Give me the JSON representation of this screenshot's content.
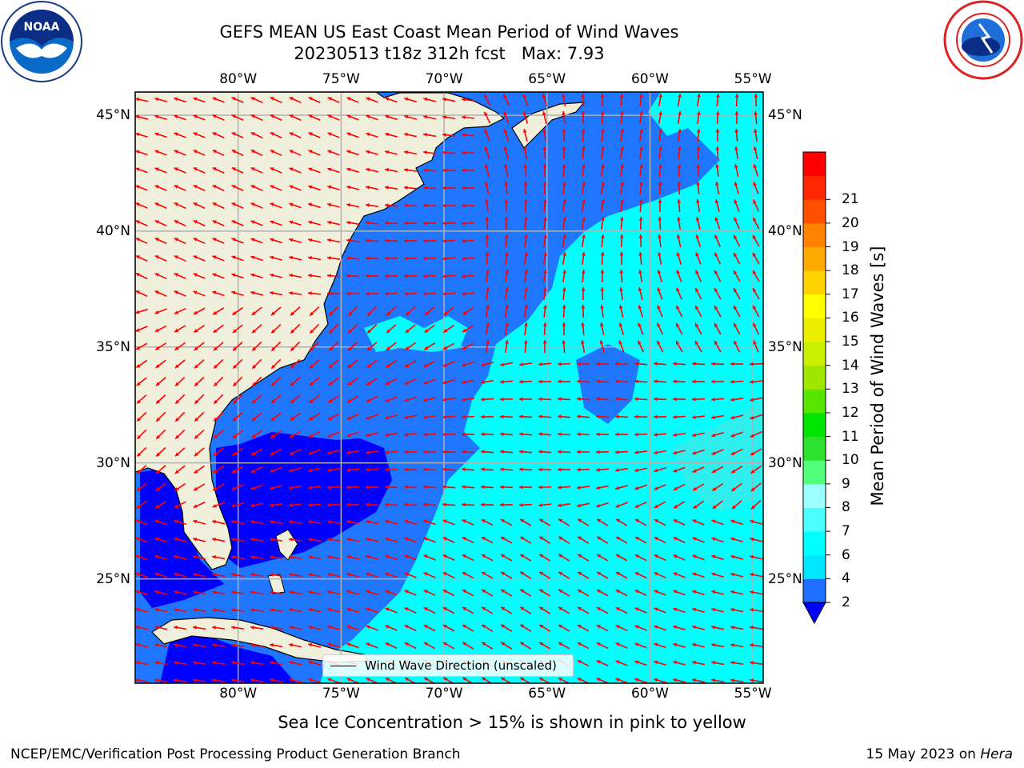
{
  "title": {
    "line1": "GEFS MEAN US East Coast Mean Period of Wind Waves",
    "line2": "20230513 t18z 312h fcst   Max: 7.93"
  },
  "map": {
    "lon_ticks_top": [
      "80°W",
      "75°W",
      "70°W",
      "65°W",
      "60°W",
      "55°W"
    ],
    "lon_ticks_bottom": [
      "80°W",
      "75°W",
      "70°W",
      "65°W",
      "60°W",
      "55°W"
    ],
    "lat_ticks_left": [
      "45°N",
      "40°N",
      "35°N",
      "30°N",
      "25°N"
    ],
    "lat_ticks_right": [
      "45°N",
      "40°N",
      "35°N",
      "30°N",
      "25°N"
    ],
    "lon_range": [
      -85,
      -54.5
    ],
    "lat_range": [
      20.5,
      46
    ],
    "land_color": "#efefdc",
    "ocean_colors": {
      "under_2": "#0000ff",
      "2_4": "#1f77ff",
      "4_6": "#00ffff",
      "6_7": "#2feeee"
    },
    "arrow_color": "#ff0000",
    "grid": true
  },
  "legend": {
    "label": "Wind Wave Direction (unscaled)"
  },
  "colorbar": {
    "label": "Mean Period of Wind Waves [s]",
    "ticks": [
      "2",
      "4",
      "6",
      "7",
      "8",
      "9",
      "10",
      "11",
      "12",
      "13",
      "14",
      "15",
      "16",
      "17",
      "18",
      "19",
      "20",
      "21"
    ],
    "colors": [
      "#1e6eff",
      "#00e6ff",
      "#00ffff",
      "#4cffff",
      "#9effff",
      "#52ff7a",
      "#2ce22c",
      "#00e600",
      "#56e600",
      "#a0e600",
      "#c8f000",
      "#ecf000",
      "#ffff00",
      "#ffd200",
      "#ffaa00",
      "#ff8200",
      "#ff5000",
      "#ff2800",
      "#ff0000"
    ],
    "under_color": "#0000ff"
  },
  "notes": {
    "ice": "Sea Ice Concentration > 15% is shown in pink to yellow",
    "footer_left": "NCEP/EMC/Verification Post Processing Product Generation Branch",
    "footer_date": "15 May 2023 on ",
    "footer_machine": "Hera"
  },
  "logos": {
    "noaa": "noaa-logo",
    "nws": "nws-logo"
  }
}
